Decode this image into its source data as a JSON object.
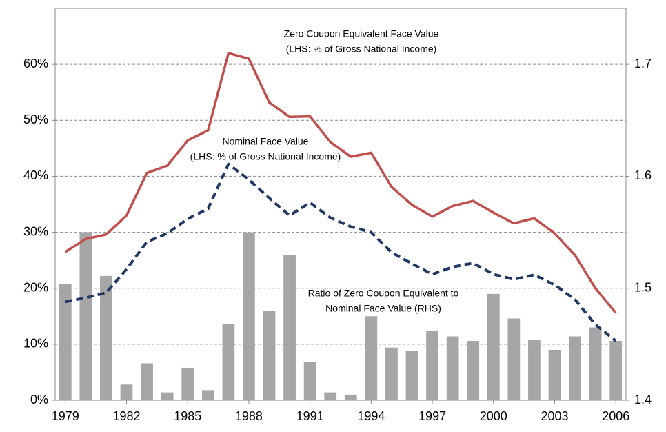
{
  "chart_data": {
    "type": "combo",
    "categories": [
      "1979",
      null,
      null,
      "1982",
      null,
      null,
      "1985",
      null,
      null,
      "1988",
      null,
      null,
      "1991",
      null,
      null,
      "1994",
      null,
      null,
      "1997",
      null,
      null,
      "2000",
      null,
      null,
      "2003",
      null,
      null,
      "2006"
    ],
    "series": [
      {
        "type": "bar",
        "axis": "y2",
        "color": "#a6a6a6",
        "values": [
          1.504,
          1.55,
          1.511,
          1.414,
          1.433,
          1.407,
          1.429,
          1.409,
          1.468,
          1.55,
          1.48,
          1.53,
          1.434,
          1.407,
          1.405,
          1.475,
          1.447,
          1.444,
          1.462,
          1.457,
          1.453,
          1.495,
          1.473,
          1.454,
          1.445,
          1.457,
          1.465,
          1.453
        ]
      },
      {
        "type": "line",
        "color": "#c0504d",
        "values": [
          26.5,
          28.8,
          29.6,
          33,
          40.6,
          41.9,
          46.4,
          48.2,
          62,
          61,
          53.2,
          50.6,
          50.7,
          46.1,
          43.5,
          44.2,
          38.1,
          34.9,
          32.8,
          34.7,
          35.6,
          33.5,
          31.6,
          32.5,
          29.8,
          25.9,
          20,
          15.6
        ]
      },
      {
        "type": "line",
        "dashed": true,
        "color": "#1f3864",
        "values": [
          17.6,
          18.3,
          19.2,
          23.4,
          28.3,
          29.8,
          32.4,
          34.2,
          42.2,
          39.4,
          36.1,
          33,
          35.3,
          32.6,
          31,
          30,
          26.4,
          24.4,
          22.5,
          23.8,
          24.5,
          22.5,
          21.6,
          22.4,
          20.6,
          18,
          13.5,
          10.6
        ]
      }
    ],
    "ylim": [
      0,
      70
    ],
    "yticks": [
      {
        "value": 0,
        "label": "0%"
      },
      {
        "value": 10,
        "label": "10%"
      },
      {
        "value": 20,
        "label": "20%"
      },
      {
        "value": 30,
        "label": "30%"
      },
      {
        "value": 40,
        "label": "40%"
      },
      {
        "value": 50,
        "label": "50%"
      },
      {
        "value": 60,
        "label": "60%"
      }
    ],
    "y2lim": [
      1.4,
      1.75
    ],
    "y2ticks": [
      1.4,
      1.5,
      1.6,
      1.7
    ],
    "grid": true,
    "annotations": [
      [
        "Zero Coupon Equivalent Face  Value",
        "(LHS: % of Gross National Income)"
      ],
      [
        "Nominal Face  Value",
        "(LHS: % of Gross National Income)"
      ],
      [
        "Ratio of Zero Coupon Equivalent to",
        "Nominal Face  Value (RHS)"
      ]
    ]
  }
}
